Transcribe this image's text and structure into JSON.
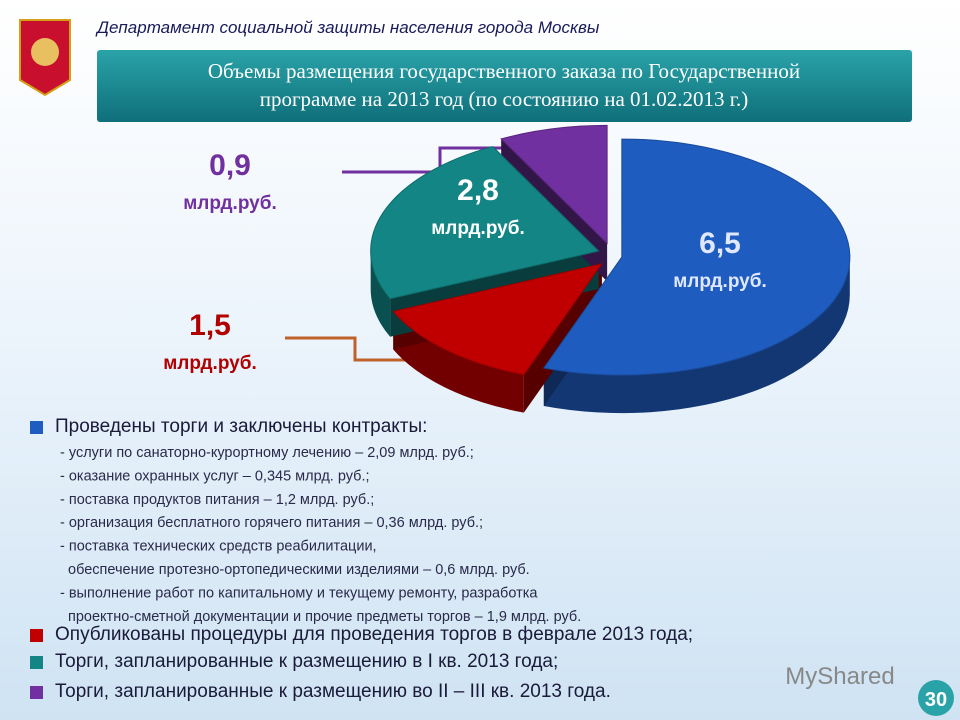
{
  "header": {
    "department": "Департамент социальной защиты населения города Москвы",
    "title_lines": [
      "Объемы размещения государственного заказа по Государственной",
      "программе на 2013 год (по состоянию на 01.02.2013 г.)"
    ]
  },
  "chart_data": {
    "type": "pie",
    "categories": [
      "Проведены торги и заключены контракты:",
      "Опубликованы процедуры для проведения торгов в феврале 2013 года;",
      "Торги, запланированные к размещению в I кв. 2013 года;",
      "Торги, запланированные к размещению во II – III кв. 2013 года."
    ],
    "values": [
      6.5,
      1.5,
      2.8,
      0.9
    ],
    "value_labels": [
      "6,5",
      "1,5",
      "2,8",
      "0,9"
    ],
    "unit": "млрд.руб.",
    "colors": [
      "#1f5cbf",
      "#c00000",
      "#138585",
      "#7030a0"
    ]
  },
  "details": [
    [
      "- услуги по санаторно-курортному лечению – 2,09 млрд. руб.;"
    ],
    [
      "- оказание охранных услуг – 0,345 млрд. руб.;"
    ],
    [
      "- поставка продуктов питания – 1,2 млрд. руб.;"
    ],
    [
      "- организация бесплатного горячего питания – 0,36 млрд. руб.;"
    ],
    [
      "- поставка технических средств реабилитации,",
      "обеспечение протезно-ортопедическими изделиями – 0,6 млрд. руб."
    ],
    [
      "- выполнение работ по капитальному и текущему ремонту, разработка",
      "проектно-сметной документации и прочие предметы торгов – 1,9 млрд. руб."
    ]
  ],
  "watermark": "MyShared",
  "slide_number": 30
}
